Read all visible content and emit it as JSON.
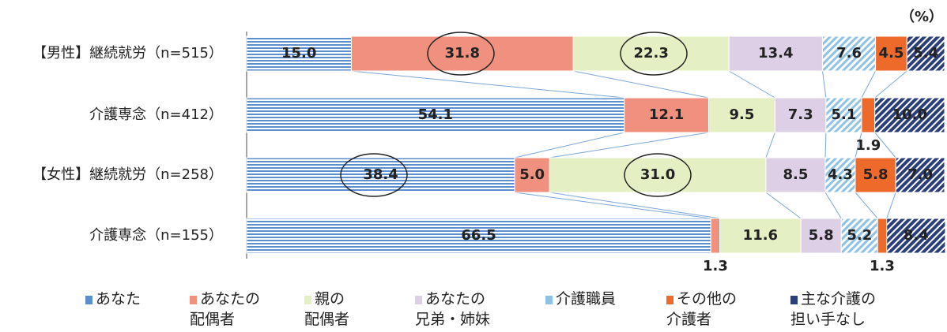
{
  "chart_data": {
    "type": "bar",
    "orientation": "horizontal",
    "stacked": true,
    "unit": "（%）",
    "categories": [
      "【男性】継続就労（n=515）",
      "介護専念（n=412）",
      "【女性】継続就労（n=258）",
      "介護専念（n=155）"
    ],
    "xlim": [
      0,
      100
    ],
    "series": [
      {
        "name": "あなた",
        "color": "#5b8fd0",
        "pattern": "horizontal",
        "values": [
          15.0,
          54.1,
          38.4,
          66.5
        ],
        "value_labels": [
          "15.0",
          "54.1",
          "38.4",
          "66.5"
        ]
      },
      {
        "name": "あなたの\n配偶者",
        "color": "#f0907e",
        "pattern": "solid",
        "values": [
          31.8,
          12.1,
          5.0,
          1.3
        ],
        "value_labels": [
          "31.8",
          "12.1",
          "5.0",
          "1.3"
        ]
      },
      {
        "name": "親の\n配偶者",
        "color": "#e4efc4",
        "pattern": "solid",
        "values": [
          22.3,
          9.5,
          31.0,
          11.6
        ],
        "value_labels": [
          "22.3",
          "9.5",
          "31.0",
          "11.6"
        ]
      },
      {
        "name": "あなたの\n兄弟・姉妹",
        "color": "#ddd0e6",
        "pattern": "solid",
        "values": [
          13.4,
          7.3,
          8.5,
          5.8
        ],
        "value_labels": [
          "13.4",
          "7.3",
          "8.5",
          "5.8"
        ]
      },
      {
        "name": "介護職員",
        "color": "#8ec3e6",
        "pattern": "diagonal-light",
        "values": [
          7.6,
          5.1,
          4.3,
          5.2
        ],
        "value_labels": [
          "7.6",
          "5.1",
          "4.3",
          "5.2"
        ]
      },
      {
        "name": "その他の\n介護者",
        "color": "#ee6a2a",
        "pattern": "solid",
        "values": [
          4.5,
          1.9,
          5.8,
          1.3
        ],
        "value_labels": [
          "4.5",
          "1.9",
          "5.8",
          "1.3"
        ]
      },
      {
        "name": "主な介護の\n担い手なし",
        "color": "#2a3f7a",
        "pattern": "diagonal-dark",
        "values": [
          5.4,
          10.0,
          7.0,
          8.4
        ],
        "value_labels": [
          "5.4",
          "10.0",
          "7.0",
          "8.4"
        ]
      }
    ]
  }
}
